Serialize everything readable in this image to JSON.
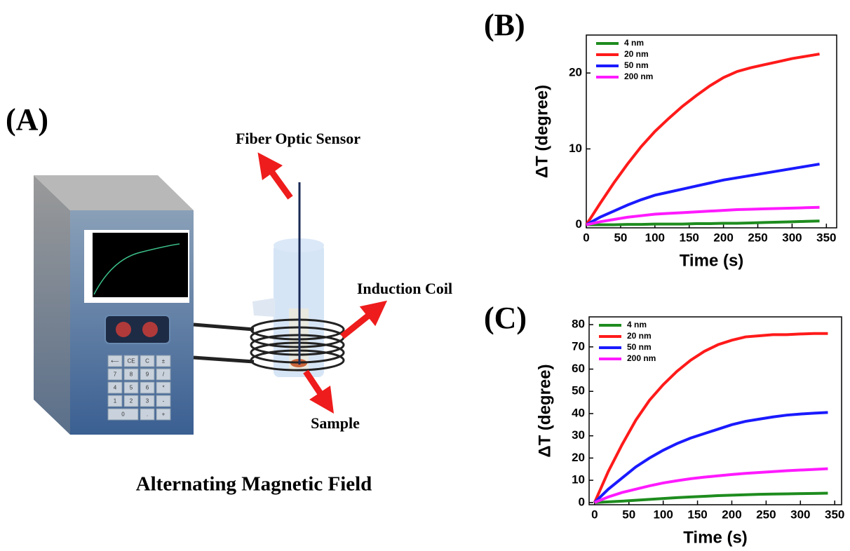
{
  "diagram": {
    "panel_label": "(A)",
    "labels": {
      "fiber": "Fiber Optic Sensor",
      "coil": "Induction Coil",
      "sample": "Sample"
    },
    "caption": "Alternating Magnetic Field",
    "keypad": [
      "⟵",
      "CE",
      "C",
      "±",
      "7",
      "8",
      "9",
      "/",
      "4",
      "5",
      "6",
      "*",
      "1",
      "2",
      "3",
      "-",
      "0",
      ".",
      "+"
    ]
  },
  "chart_data": [
    {
      "type": "line",
      "panel_label": "(B)",
      "x_label": "Time (s)",
      "y_label": "ΔT (degree)",
      "x": [
        0,
        20,
        40,
        60,
        80,
        100,
        120,
        140,
        160,
        180,
        200,
        220,
        240,
        260,
        280,
        300,
        320,
        340
      ],
      "series": [
        {
          "name": "4 nm",
          "color": "#1e8c1e",
          "values": [
            0,
            0,
            0,
            0.05,
            0.05,
            0.1,
            0.1,
            0.1,
            0.15,
            0.15,
            0.2,
            0.2,
            0.25,
            0.3,
            0.35,
            0.4,
            0.45,
            0.5
          ]
        },
        {
          "name": "20 nm",
          "color": "#ff1a1a",
          "values": [
            0,
            2.8,
            5.5,
            8,
            10.3,
            12.3,
            14,
            15.6,
            17,
            18.3,
            19.4,
            20.2,
            20.7,
            21.1,
            21.5,
            21.9,
            22.2,
            22.5
          ]
        },
        {
          "name": "50 nm",
          "color": "#1a1aff",
          "values": [
            0,
            1,
            1.8,
            2.6,
            3.3,
            3.9,
            4.3,
            4.7,
            5.1,
            5.5,
            5.9,
            6.2,
            6.5,
            6.8,
            7.1,
            7.4,
            7.7,
            8.0
          ]
        },
        {
          "name": "200 nm",
          "color": "#ff1aff",
          "values": [
            0,
            0.4,
            0.7,
            1,
            1.2,
            1.4,
            1.5,
            1.6,
            1.7,
            1.8,
            1.9,
            2,
            2.05,
            2.1,
            2.15,
            2.2,
            2.25,
            2.3
          ]
        }
      ],
      "xlim": [
        0,
        365
      ],
      "ylim": [
        -0.4,
        25
      ],
      "xticks": [
        0,
        50,
        100,
        150,
        200,
        250,
        300,
        350
      ],
      "yticks": [
        0,
        10,
        20
      ],
      "legend": "upper left"
    },
    {
      "type": "line",
      "panel_label": "(C)",
      "x_label": "Time (s)",
      "y_label": "ΔT (degree)",
      "x": [
        0,
        20,
        40,
        60,
        80,
        100,
        120,
        140,
        160,
        180,
        200,
        220,
        240,
        260,
        280,
        300,
        320,
        340
      ],
      "series": [
        {
          "name": "4 nm",
          "color": "#1e8c1e",
          "values": [
            0,
            0.3,
            0.6,
            1,
            1.4,
            1.8,
            2.2,
            2.5,
            2.8,
            3.1,
            3.3,
            3.5,
            3.7,
            3.8,
            3.9,
            4,
            4.1,
            4.2
          ]
        },
        {
          "name": "20 nm",
          "color": "#ff1a1a",
          "values": [
            0,
            14,
            26,
            37,
            46,
            53,
            59,
            64,
            68,
            71,
            73,
            74.5,
            75,
            75.5,
            75.5,
            75.8,
            76,
            76
          ]
        },
        {
          "name": "50 nm",
          "color": "#1a1aff",
          "values": [
            0,
            6,
            11,
            16,
            20,
            23.5,
            26.5,
            29,
            31,
            33,
            35,
            36.5,
            37.5,
            38.5,
            39.3,
            39.8,
            40.2,
            40.5
          ]
        },
        {
          "name": "200 nm",
          "color": "#ff1aff",
          "values": [
            0,
            2.5,
            4.5,
            6,
            7.5,
            8.8,
            9.8,
            10.7,
            11.4,
            12,
            12.6,
            13.1,
            13.5,
            13.9,
            14.3,
            14.6,
            14.9,
            15.2
          ]
        }
      ],
      "xlim": [
        -8,
        360
      ],
      "ylim": [
        -1,
        83.5
      ],
      "xticks": [
        0,
        50,
        100,
        150,
        200,
        250,
        300,
        350
      ],
      "yticks": [
        0,
        10,
        20,
        30,
        40,
        50,
        60,
        70,
        80
      ],
      "legend": "upper left"
    }
  ]
}
